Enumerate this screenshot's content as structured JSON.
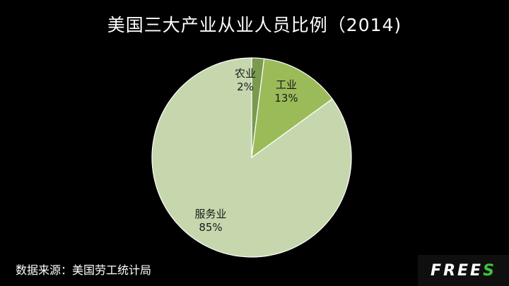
{
  "title": "美国三大产业从业人员比例（2014)",
  "source": "数据来源：美国劳工统计局",
  "logo": {
    "main": "FREE",
    "accent": "S",
    "accent_color": "#3ec43e"
  },
  "colors": {
    "agriculture": "#7a9a4e",
    "industry": "#9bbb59",
    "services": "#c6d7ad",
    "background": "#000000"
  },
  "labels": {
    "agriculture": {
      "name": "农业",
      "pct": "2%"
    },
    "industry": {
      "name": "工业",
      "pct": "13%"
    },
    "services": {
      "name": "服务业",
      "pct": "85%"
    }
  },
  "chart_data": {
    "type": "pie",
    "title": "美国三大产业从业人员比例（2014)",
    "categories": [
      "农业",
      "工业",
      "服务业"
    ],
    "values": [
      2,
      13,
      85
    ],
    "unit": "%",
    "source": "数据来源：美国劳工统计局",
    "legend": "none (data labels inside slices)"
  }
}
